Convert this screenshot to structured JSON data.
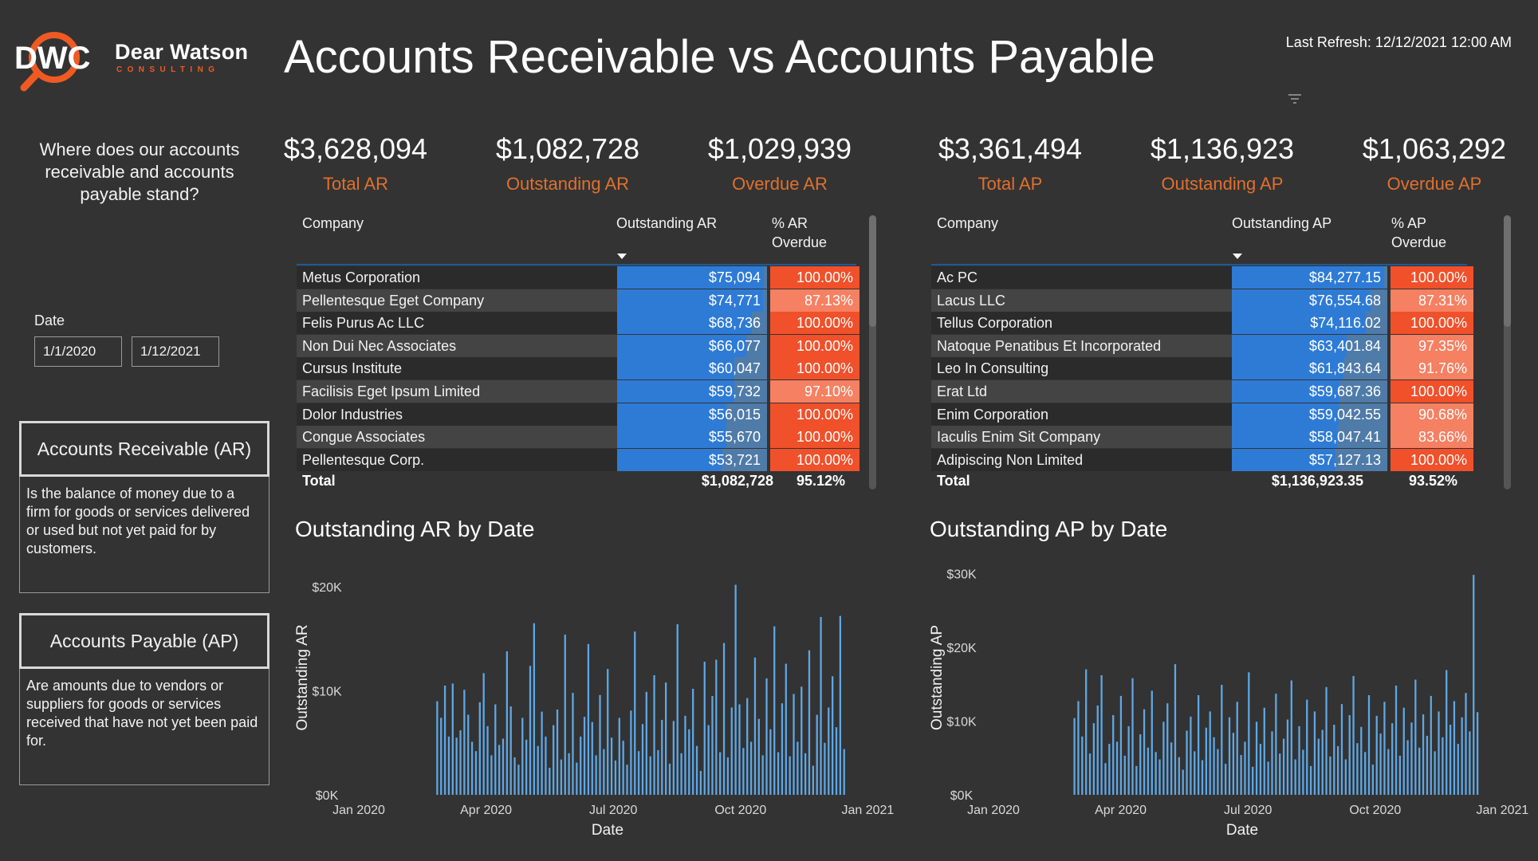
{
  "brand": {
    "name": "Dear Watson",
    "sub": "CONSULTING",
    "mark": "DWC",
    "orange": "#ef5a23"
  },
  "header": {
    "title": "Accounts Receivable vs Accounts Payable",
    "last_refresh": "Last Refresh: 12/12/2021 12:00 AM"
  },
  "sidebar": {
    "question": "Where does our accounts receivable and accounts payable stand?",
    "date_label": "Date",
    "date_start": "1/1/2020",
    "date_end": "1/12/2021",
    "ar_title": "Accounts Receivable (AR)",
    "ar_desc": "Is the balance of money due to a firm for goods or services delivered or used but not yet paid for by customers.",
    "ap_title": "Accounts Payable (AP)",
    "ap_desc": "Are amounts due to vendors or suppliers for goods or services received that have not yet been paid for."
  },
  "kpis": [
    {
      "value": "$3,628,094",
      "label": "Total AR"
    },
    {
      "value": "$1,082,728",
      "label": "Outstanding AR"
    },
    {
      "value": "$1,029,939",
      "label": "Overdue AR"
    },
    {
      "value": "$3,361,494",
      "label": "Total AP"
    },
    {
      "value": "$1,136,923",
      "label": "Outstanding AP"
    },
    {
      "value": "$1,063,292",
      "label": "Overdue AP"
    }
  ],
  "colors": {
    "bar_blue": "#2e7bd6",
    "bar_light": "#4f7ba8",
    "overdue_full": "#f0502a",
    "overdue_light": "#f58062",
    "chart_bar": "#5fa8e6",
    "kpi_label": "#e0702e"
  },
  "ar_table": {
    "headers": {
      "company": "Company",
      "outstanding": "Outstanding AR",
      "pct_line1": "% AR",
      "pct_line2": "Overdue"
    },
    "rows": [
      {
        "company": "Metus Corporation",
        "outstanding": "$75,094",
        "amount": 75094,
        "pct": "100.00%",
        "pct_value": 100.0
      },
      {
        "company": "Pellentesque Eget Company",
        "outstanding": "$74,771",
        "amount": 74771,
        "pct": "87.13%",
        "pct_value": 87.13
      },
      {
        "company": "Felis Purus Ac LLC",
        "outstanding": "$68,736",
        "amount": 68736,
        "pct": "100.00%",
        "pct_value": 100.0
      },
      {
        "company": "Non Dui Nec Associates",
        "outstanding": "$66,077",
        "amount": 66077,
        "pct": "100.00%",
        "pct_value": 100.0
      },
      {
        "company": "Cursus Institute",
        "outstanding": "$60,047",
        "amount": 60047,
        "pct": "100.00%",
        "pct_value": 100.0
      },
      {
        "company": "Facilisis Eget Ipsum Limited",
        "outstanding": "$59,732",
        "amount": 59732,
        "pct": "97.10%",
        "pct_value": 97.1
      },
      {
        "company": "Dolor Industries",
        "outstanding": "$56,015",
        "amount": 56015,
        "pct": "100.00%",
        "pct_value": 100.0
      },
      {
        "company": "Congue Associates",
        "outstanding": "$55,670",
        "amount": 55670,
        "pct": "100.00%",
        "pct_value": 100.0
      },
      {
        "company": "Pellentesque Corp.",
        "outstanding": "$53,721",
        "amount": 53721,
        "pct": "100.00%",
        "pct_value": 100.0
      }
    ],
    "total_label": "Total",
    "total_outstanding": "$1,082,728",
    "total_pct": "95.12%"
  },
  "ap_table": {
    "headers": {
      "company": "Company",
      "outstanding": "Outstanding AP",
      "pct_line1": "% AP",
      "pct_line2": "Overdue"
    },
    "rows": [
      {
        "company": "Ac PC",
        "outstanding": "$84,277.15",
        "amount": 84277.15,
        "pct": "100.00%",
        "pct_value": 100.0
      },
      {
        "company": "Lacus LLC",
        "outstanding": "$76,554.68",
        "amount": 76554.68,
        "pct": "87.31%",
        "pct_value": 87.31
      },
      {
        "company": "Tellus Corporation",
        "outstanding": "$74,116.02",
        "amount": 74116.02,
        "pct": "100.00%",
        "pct_value": 100.0
      },
      {
        "company": "Natoque Penatibus Et Incorporated",
        "outstanding": "$63,401.84",
        "amount": 63401.84,
        "pct": "97.35%",
        "pct_value": 97.35
      },
      {
        "company": "Leo In Consulting",
        "outstanding": "$61,843.64",
        "amount": 61843.64,
        "pct": "91.76%",
        "pct_value": 91.76
      },
      {
        "company": "Erat Ltd",
        "outstanding": "$59,687.36",
        "amount": 59687.36,
        "pct": "100.00%",
        "pct_value": 100.0
      },
      {
        "company": "Enim Corporation",
        "outstanding": "$59,042.55",
        "amount": 59042.55,
        "pct": "90.68%",
        "pct_value": 90.68
      },
      {
        "company": "Iaculis Enim Sit Company",
        "outstanding": "$58,047.41",
        "amount": 58047.41,
        "pct": "83.66%",
        "pct_value": 83.66
      },
      {
        "company": "Adipiscing Non Limited",
        "outstanding": "$57,127.13",
        "amount": 57127.13,
        "pct": "100.00%",
        "pct_value": 100.0
      }
    ],
    "total_label": "Total",
    "total_outstanding": "$1,136,923.35",
    "total_pct": "93.52%"
  },
  "chart_data": [
    {
      "type": "bar",
      "title": "Outstanding AR by Date",
      "xlabel": "Date",
      "ylabel": "Outstanding AR",
      "xticks": [
        "Jan 2020",
        "Apr 2020",
        "Jul 2020",
        "Oct 2020",
        "Jan 2021"
      ],
      "yticks": [
        "$0K",
        "$10K",
        "$20K"
      ],
      "ylim": [
        0,
        22000
      ],
      "x_start_index": 60,
      "values": [
        9000,
        7400,
        10500,
        5600,
        10700,
        5500,
        6200,
        10100,
        7700,
        5100,
        4200,
        8900,
        11700,
        6600,
        3800,
        8700,
        4800,
        5400,
        13800,
        8500,
        3600,
        2900,
        7400,
        5300,
        12400,
        16500,
        4700,
        8000,
        5600,
        2600,
        6700,
        8200,
        3400,
        15400,
        4000,
        9800,
        3100,
        5600,
        7500,
        14500,
        7000,
        3800,
        9600,
        4400,
        12100,
        5500,
        3300,
        7400,
        5200,
        2900,
        8100,
        15700,
        4200,
        6800,
        9900,
        3700,
        11500,
        4300,
        7200,
        10800,
        3000,
        7100,
        16400,
        4000,
        7600,
        6300,
        10200,
        4700,
        2300,
        12800,
        6700,
        9500,
        13000,
        4100,
        14600,
        3600,
        8400,
        20200,
        8700,
        4500,
        9300,
        5100,
        13200,
        7300,
        3800,
        11200,
        6300,
        16200,
        4100,
        8800,
        12600,
        3700,
        9700,
        5100,
        10400,
        4000,
        13900,
        2800,
        7700,
        17100,
        5000,
        8400,
        11400,
        6500,
        17200,
        4400
      ]
    },
    {
      "type": "bar",
      "title": "Outstanding AP by Date",
      "xlabel": "Date",
      "ylabel": "Outstanding AP",
      "xticks": [
        "Jan 2020",
        "Apr 2020",
        "Jul 2020",
        "Oct 2020",
        "Jan 2021"
      ],
      "yticks": [
        "$0K",
        "$10K",
        "$20K",
        "$30K"
      ],
      "ylim": [
        0,
        31000
      ],
      "x_start_index": 62,
      "values": [
        10400,
        12700,
        7900,
        17000,
        5600,
        9700,
        12100,
        16200,
        4300,
        6900,
        10800,
        7200,
        13400,
        5300,
        9300,
        15800,
        3900,
        8200,
        11600,
        6400,
        14100,
        5800,
        4800,
        9900,
        12400,
        7100,
        17700,
        5100,
        3400,
        8700,
        10600,
        5900,
        13500,
        4700,
        9100,
        11300,
        7800,
        6200,
        14900,
        4200,
        10500,
        8400,
        12600,
        5400,
        7200,
        16600,
        3800,
        9900,
        6900,
        11800,
        4500,
        8600,
        13700,
        5600,
        7600,
        10200,
        15500,
        4800,
        9300,
        6100,
        12900,
        3900,
        11300,
        7600,
        8800,
        14600,
        5200,
        9500,
        6600,
        12300,
        4800,
        10800,
        16100,
        7000,
        9200,
        5800,
        13500,
        4100,
        10700,
        8300,
        12600,
        6200,
        9700,
        14800,
        5300,
        11800,
        7400,
        9800,
        15600,
        6400,
        10900,
        8000,
        13400,
        5900,
        11300,
        7800,
        16900,
        9500,
        12700,
        6900,
        10500,
        13800,
        8600,
        29800,
        11200
      ]
    }
  ]
}
